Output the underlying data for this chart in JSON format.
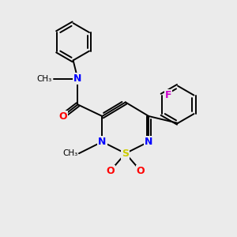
{
  "bg_color": "#ebebeb",
  "bond_color": "#000000",
  "atom_colors": {
    "N": "#0000ff",
    "O": "#ff0000",
    "S": "#cccc00",
    "F": "#cc00cc",
    "C": "#000000"
  }
}
